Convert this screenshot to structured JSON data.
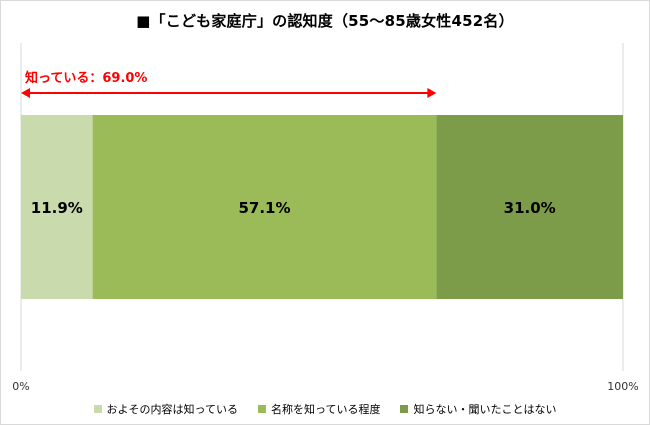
{
  "chart_data": {
    "type": "bar",
    "orientation": "horizontal",
    "stacked": true,
    "title": "■「こども家庭庁」の認知度（55～85歳女性452名）",
    "xlim": [
      0,
      100
    ],
    "x_ticks": [
      "0%",
      "100%"
    ],
    "grid": false,
    "legend_position": "bottom",
    "series": [
      {
        "name": "およその内容は知っている",
        "value": 11.9,
        "label": "11.9%",
        "color": "#c9dbad"
      },
      {
        "name": "名称を知っている程度",
        "value": 57.1,
        "label": "57.1%",
        "color": "#9bbb59"
      },
      {
        "name": "知らない・聞いたことはない",
        "value": 31.0,
        "label": "31.0%",
        "color": "#7d9c49"
      }
    ],
    "annotation": {
      "text": "知っている：69.0%",
      "value": 69.0,
      "color": "#ff0000"
    }
  }
}
